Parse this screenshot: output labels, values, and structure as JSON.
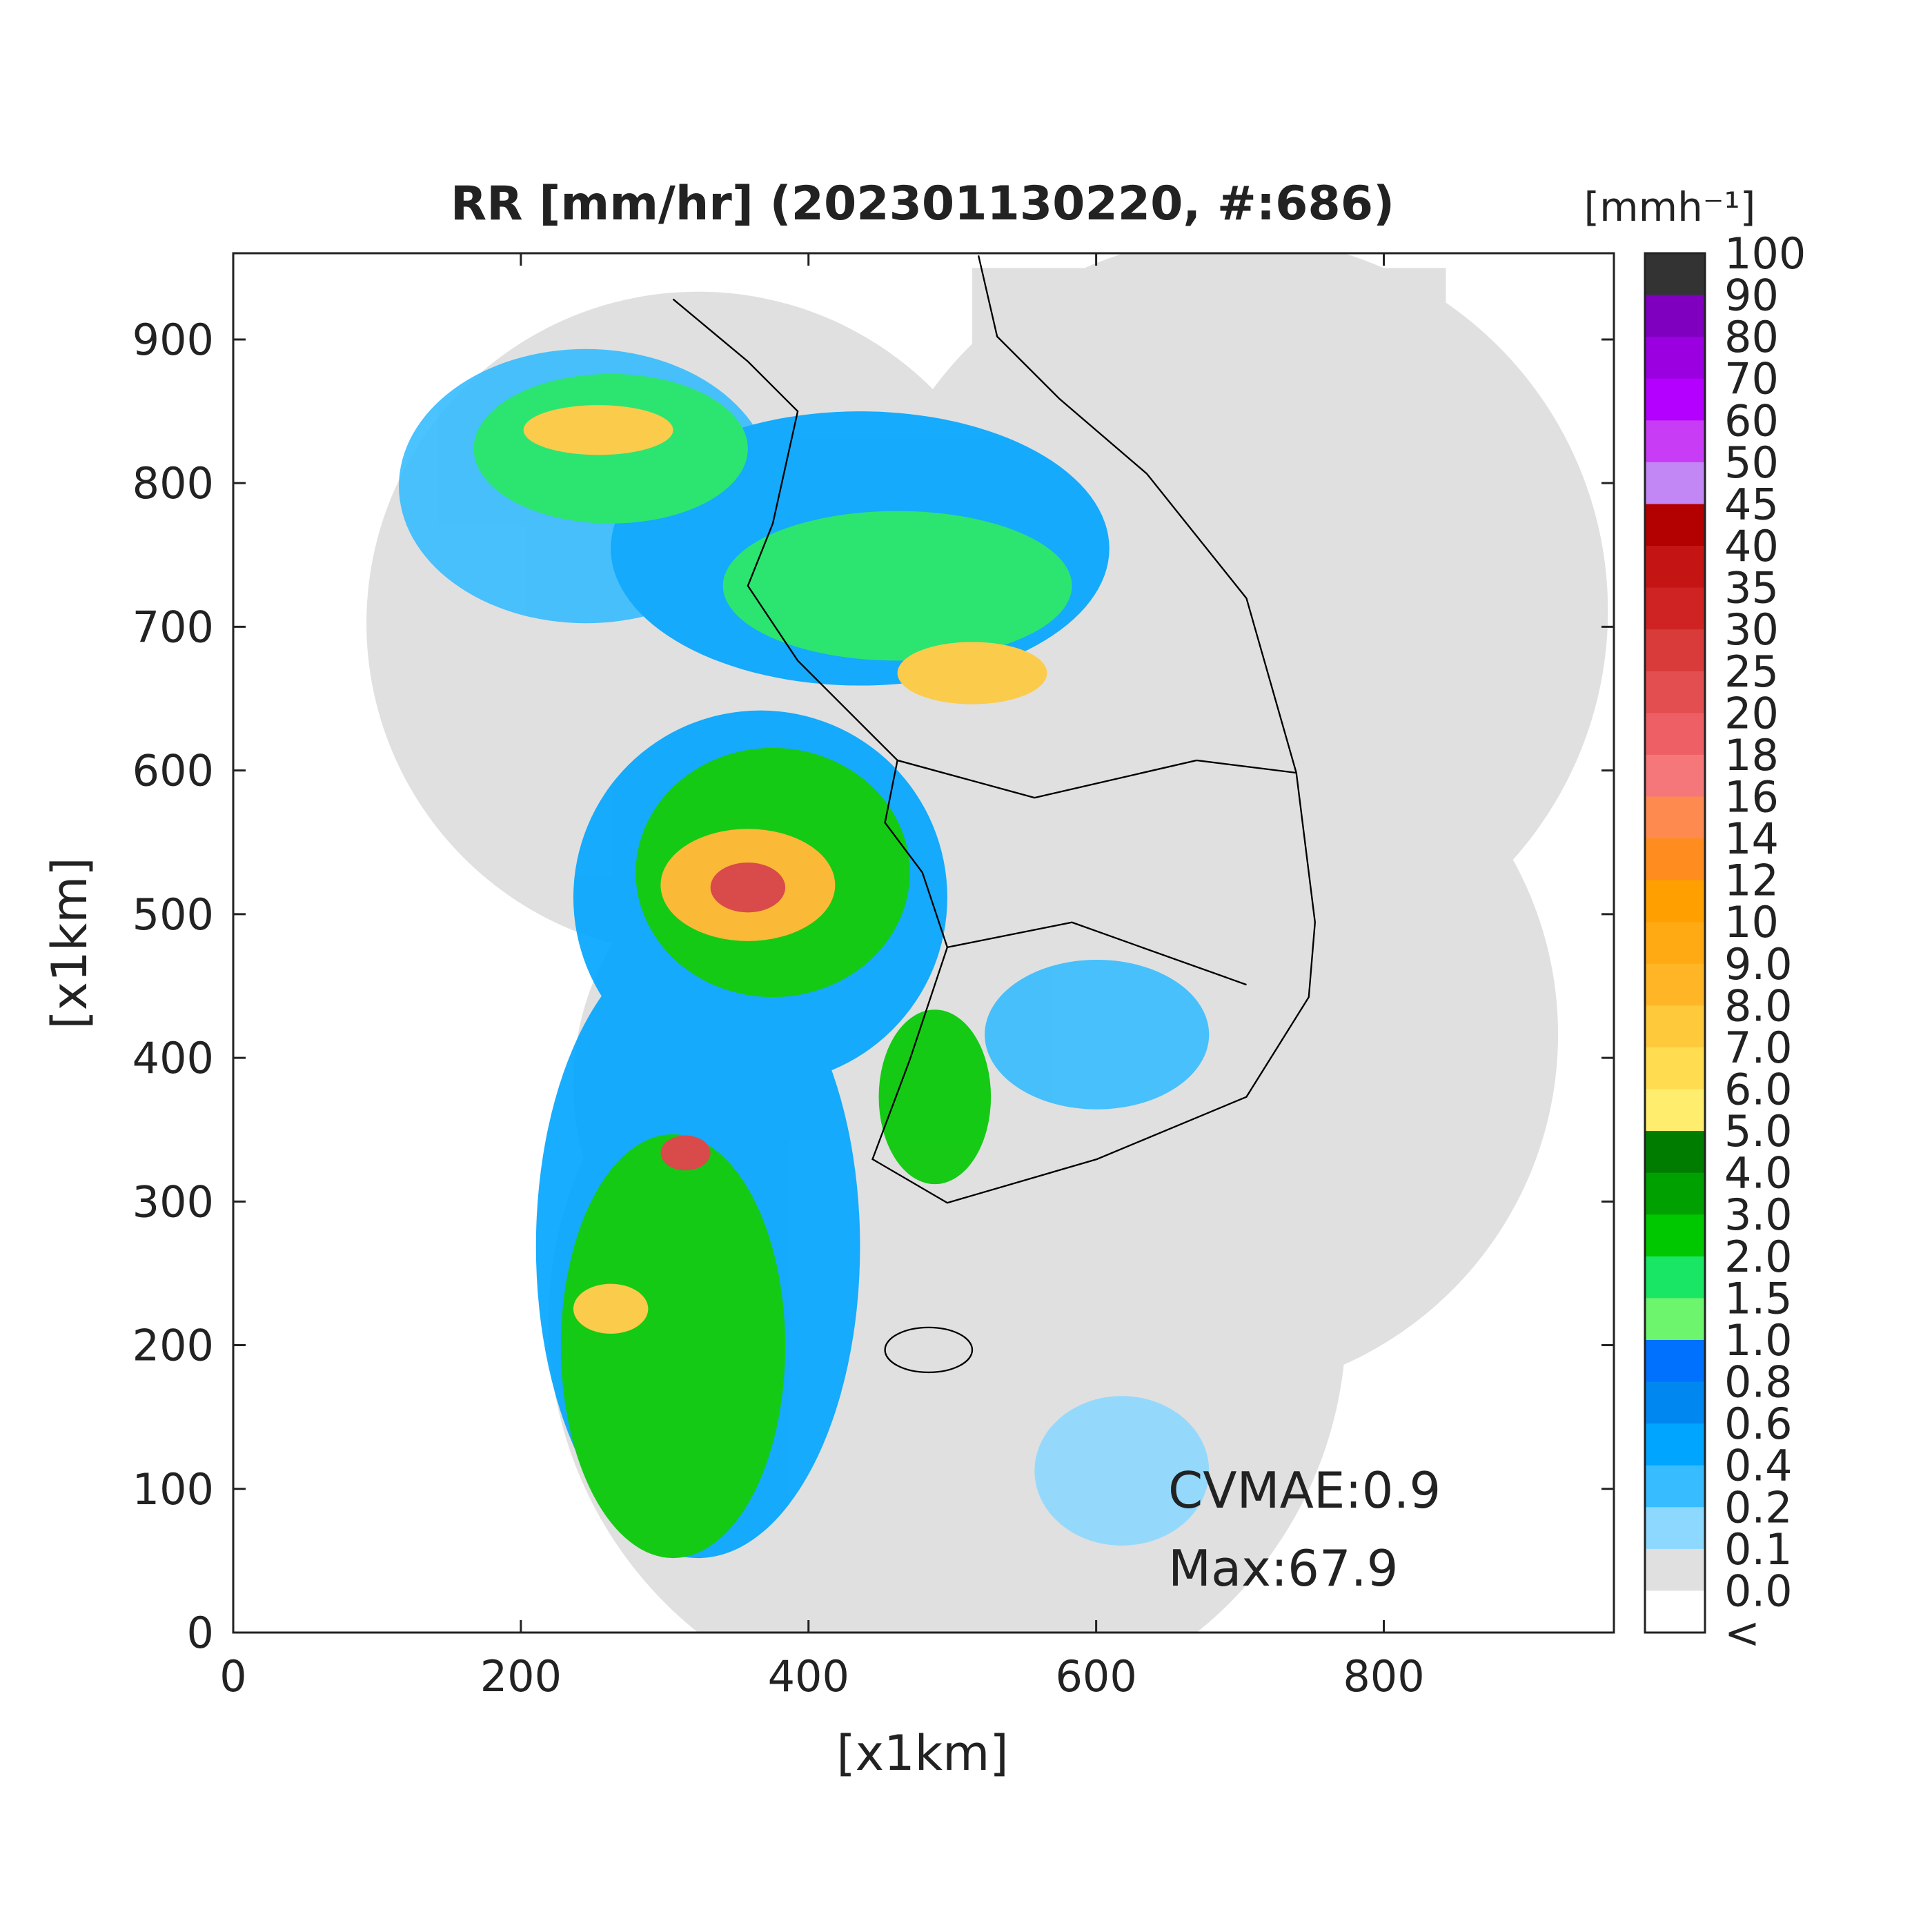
{
  "chart_data": {
    "type": "heatmap",
    "title": "RR [mm/hr] (202301130220, #:686)",
    "x_label": "[x1km]",
    "y_label": "[x1km]",
    "xlim": [
      0,
      960
    ],
    "ylim": [
      0,
      960
    ],
    "xticks": [
      0,
      200,
      400,
      600,
      800
    ],
    "yticks": [
      0,
      100,
      200,
      300,
      400,
      500,
      600,
      700,
      800,
      900
    ],
    "annotations": [
      "CVMAE:0.9",
      "Max:67.9"
    ],
    "colorbar": {
      "title": "[mmh⁻¹]",
      "labels": [
        "100",
        "90",
        "80",
        "70",
        "60",
        "50",
        "45",
        "40",
        "35",
        "30",
        "25",
        "20",
        "18",
        "16",
        "14",
        "12",
        "10",
        "9.0",
        "8.0",
        "7.0",
        "6.0",
        "5.0",
        "4.0",
        "3.0",
        "2.0",
        "1.5",
        "1.0",
        "0.8",
        "0.6",
        "0.4",
        "0.2",
        "0.1",
        "0.0",
        "<"
      ],
      "colors": [
        "#333333",
        "#7f00bf",
        "#9a00e0",
        "#b300ff",
        "#c83cf5",
        "#c387f5",
        "#b30000",
        "#c41414",
        "#cf2323",
        "#d93a3a",
        "#e34e50",
        "#ed5f64",
        "#f5777a",
        "#ff8a50",
        "#ff8c1f",
        "#ffa000",
        "#ffa913",
        "#ffb526",
        "#ffc93c",
        "#ffdc50",
        "#ffee6e",
        "#007d00",
        "#00a000",
        "#00c800",
        "#19e664",
        "#6ef56e",
        "#0070ff",
        "#0088f0",
        "#00a5ff",
        "#36bcff",
        "#8cd8ff",
        "#e0e0e0",
        "#ffffff"
      ]
    }
  }
}
